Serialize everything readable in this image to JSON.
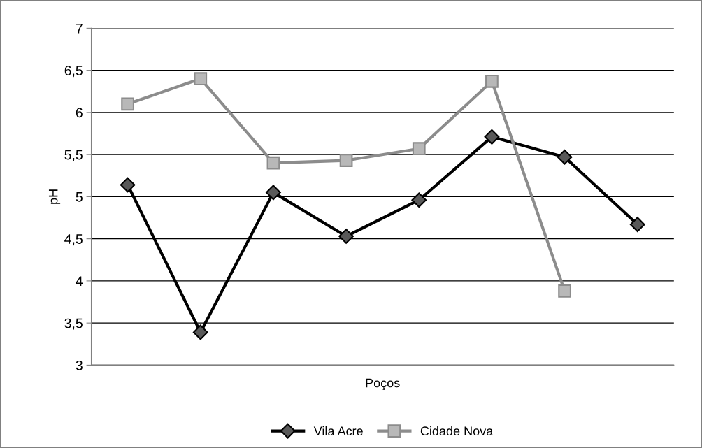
{
  "chart_data": {
    "type": "line",
    "xlabel": "Poços",
    "ylabel": "pH",
    "categories": [
      null,
      null,
      null,
      null,
      null,
      null,
      null,
      null
    ],
    "series": [
      {
        "name": "Vila Acre",
        "color": "#000000",
        "marker": "diamond",
        "values": [
          5.14,
          3.39,
          5.05,
          4.53,
          4.96,
          5.71,
          5.47,
          4.67
        ]
      },
      {
        "name": "Cidade Nova",
        "color": "#8c8c8c",
        "marker": "square",
        "values": [
          6.1,
          6.4,
          5.4,
          5.43,
          5.57,
          6.37,
          3.88,
          null
        ]
      }
    ],
    "ylim": [
      3,
      7
    ],
    "yticks": [
      {
        "value": 3,
        "label": "3"
      },
      {
        "value": 3.5,
        "label": "3,5"
      },
      {
        "value": 4,
        "label": "4"
      },
      {
        "value": 4.5,
        "label": "4,5"
      },
      {
        "value": 5,
        "label": "5"
      },
      {
        "value": 5.5,
        "label": "5,5"
      },
      {
        "value": 6,
        "label": "6"
      },
      {
        "value": 6.5,
        "label": "6,5"
      },
      {
        "value": 7,
        "label": "7"
      }
    ],
    "grid": "y",
    "legend": "bottom",
    "line_style": "solid"
  }
}
